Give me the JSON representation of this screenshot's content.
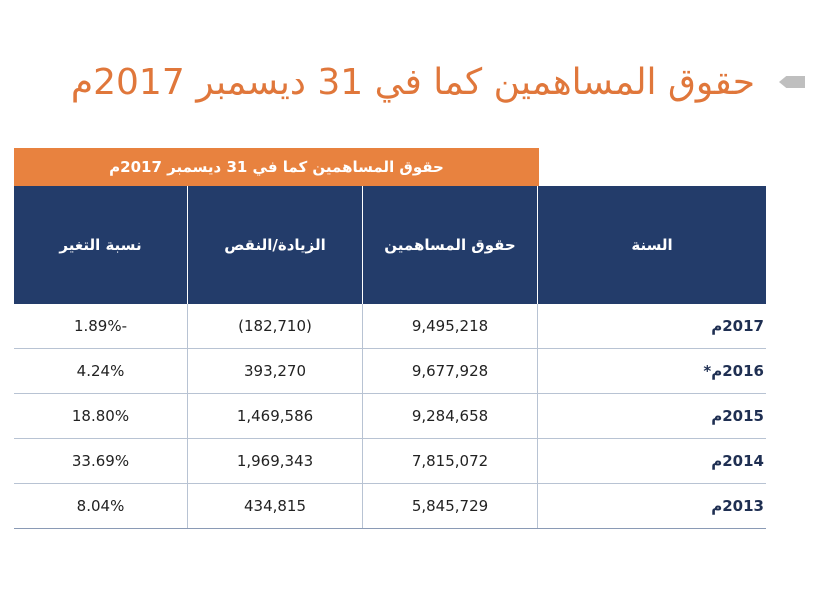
{
  "title": "حقوق المساهمين كما في 31 ديسمبر 2017م",
  "table": {
    "caption": "حقوق المساهمين كما في 31 ديسمبر 2017م",
    "headers": {
      "year": "السنة",
      "equity": "حقوق المساهمين",
      "change": "الزيادة/النقص",
      "rate": "نسبة التغير"
    },
    "rows": [
      {
        "year": "2017م",
        "equity": "9,495,218",
        "change": "(182,710)",
        "rate": "1.89%-"
      },
      {
        "year": "2016م*",
        "equity": "9,677,928",
        "change": "393,270",
        "rate": "4.24%"
      },
      {
        "year": "2015م",
        "equity": "9,284,658",
        "change": "1,469,586",
        "rate": "18.80%"
      },
      {
        "year": "2014م",
        "equity": "7,815,072",
        "change": "1,969,343",
        "rate": "33.69%"
      },
      {
        "year": "2013م",
        "equity": "5,845,729",
        "change": "434,815",
        "rate": "8.04%"
      }
    ]
  },
  "colors": {
    "accent": "#e0773b",
    "caption_bg": "#e8823f",
    "header_bg": "#233c6a"
  }
}
